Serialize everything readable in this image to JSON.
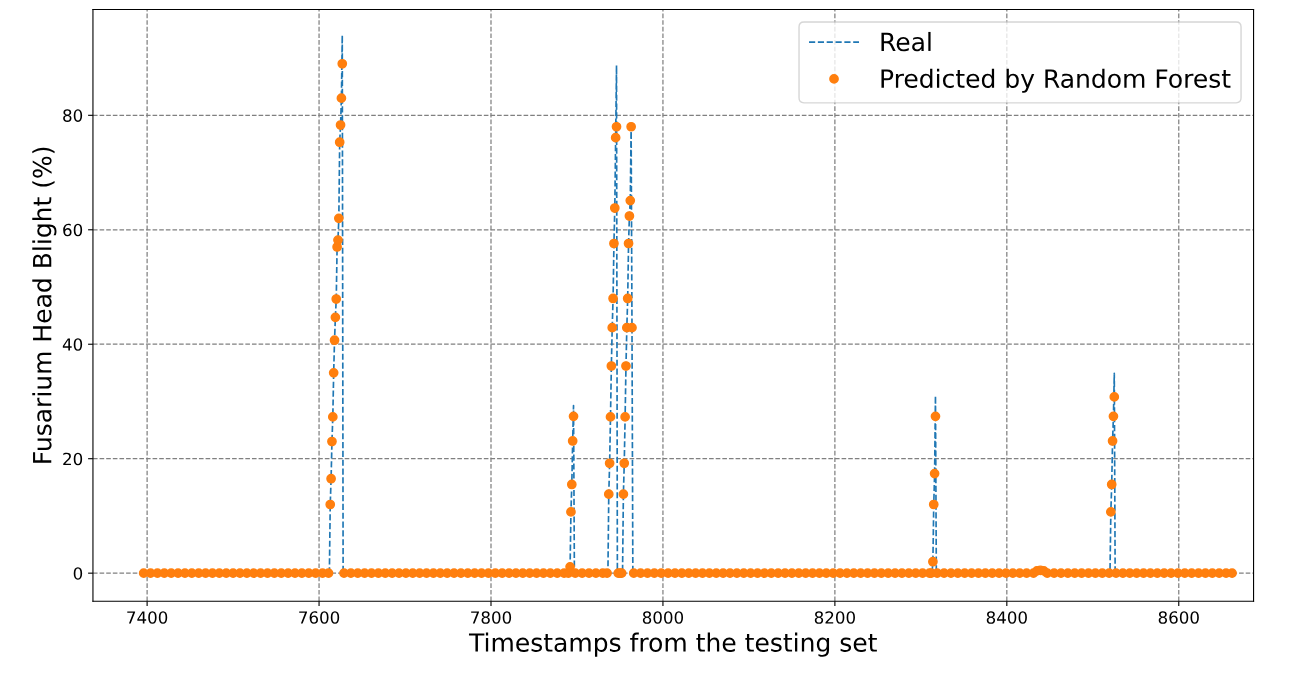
{
  "chart_data": {
    "type": "line",
    "xlabel": "Timestamps from the testing set",
    "ylabel": "Fusarium Head Blight (%)",
    "xlim": [
      7337,
      8687
    ],
    "xticks": [
      7400,
      7600,
      7800,
      8000,
      8200,
      8400,
      8600
    ],
    "ylim": [
      -4.9,
      98.5
    ],
    "yticks": [
      0,
      20,
      40,
      60,
      80
    ],
    "grid": true,
    "legend": "top right",
    "series": [
      {
        "name": "Real",
        "line_style": "dashed",
        "marker": "none",
        "color": "#1f77b4",
        "x": [
          7396,
          7612,
          7613,
          7614,
          7615,
          7616,
          7617,
          7618,
          7619,
          7620,
          7621,
          7622,
          7623,
          7624,
          7625,
          7626,
          7627,
          7628,
          7891,
          7892,
          7893,
          7894,
          7895,
          7896,
          7897,
          7936,
          7937,
          7938,
          7939,
          7940,
          7941,
          7942,
          7943,
          7944,
          7945,
          7946,
          7947,
          7953,
          7954,
          7955,
          7956,
          7957,
          7958,
          7959,
          7960,
          7961,
          7962,
          7963,
          7964,
          7965,
          8313,
          8314,
          8315,
          8316,
          8317,
          8318,
          8520,
          8521,
          8522,
          8523,
          8524,
          8525,
          8526,
          8662
        ],
        "values": [
          0,
          0,
          12,
          16.5,
          23,
          27.3,
          35,
          40.7,
          44.7,
          47.9,
          57,
          58.2,
          62,
          75.3,
          78.3,
          83,
          94,
          0,
          0,
          1.1,
          10.7,
          15.5,
          23.1,
          29.3,
          0,
          0,
          13.8,
          19.2,
          27.3,
          36.2,
          42.9,
          48,
          57.6,
          63.8,
          76.1,
          88.7,
          0,
          0,
          13.8,
          19.2,
          27.3,
          36.2,
          42.9,
          48,
          57.6,
          62.4,
          65.1,
          78,
          42.9,
          0,
          0,
          2,
          12,
          17.4,
          31,
          0,
          0,
          10.7,
          15.5,
          23.1,
          27.4,
          34.9,
          0,
          0
        ]
      },
      {
        "name": "Predicted by Random Forest",
        "type": "scatter",
        "marker": "circle",
        "color": "#ff7f0e",
        "x": [
          7396,
          7404,
          7412,
          7420,
          7428,
          7436,
          7444,
          7452,
          7460,
          7468,
          7476,
          7484,
          7492,
          7500,
          7508,
          7516,
          7524,
          7532,
          7540,
          7548,
          7556,
          7564,
          7572,
          7580,
          7588,
          7596,
          7604,
          7611,
          7613,
          7614,
          7615,
          7616,
          7617,
          7618,
          7619,
          7620,
          7621,
          7622,
          7623,
          7624,
          7625,
          7626,
          7627,
          7629,
          7637,
          7645,
          7653,
          7661,
          7669,
          7677,
          7685,
          7693,
          7701,
          7709,
          7717,
          7725,
          7733,
          7741,
          7749,
          7757,
          7765,
          7773,
          7781,
          7789,
          7797,
          7805,
          7813,
          7821,
          7829,
          7837,
          7845,
          7853,
          7861,
          7869,
          7877,
          7885,
          7890,
          7892,
          7893,
          7894,
          7895,
          7896,
          7898,
          7906,
          7914,
          7922,
          7930,
          7935,
          7937,
          7938,
          7939,
          7940,
          7941,
          7942,
          7943,
          7944,
          7945,
          7946,
          7948,
          7950,
          7952,
          7954,
          7955,
          7956,
          7957,
          7958,
          7959,
          7960,
          7961,
          7962,
          7963,
          7964,
          7966,
          7974,
          7982,
          7990,
          7998,
          8006,
          8014,
          8022,
          8030,
          8038,
          8046,
          8054,
          8062,
          8070,
          8078,
          8086,
          8094,
          8102,
          8110,
          8118,
          8126,
          8134,
          8142,
          8150,
          8158,
          8166,
          8174,
          8182,
          8190,
          8198,
          8206,
          8214,
          8222,
          8230,
          8238,
          8246,
          8254,
          8262,
          8270,
          8278,
          8286,
          8294,
          8302,
          8310,
          8312,
          8314,
          8315,
          8316,
          8317,
          8319,
          8327,
          8335,
          8343,
          8351,
          8359,
          8367,
          8375,
          8383,
          8391,
          8399,
          8407,
          8415,
          8423,
          8431,
          8435,
          8439,
          8443,
          8447,
          8455,
          8463,
          8471,
          8479,
          8487,
          8495,
          8503,
          8511,
          8519,
          8521,
          8522,
          8523,
          8524,
          8525,
          8527,
          8535,
          8543,
          8551,
          8559,
          8567,
          8575,
          8583,
          8591,
          8599,
          8607,
          8615,
          8623,
          8631,
          8639,
          8647,
          8655,
          8662
        ],
        "values": [
          0,
          0,
          0,
          0,
          0,
          0,
          0,
          0,
          0,
          0,
          0,
          0,
          0,
          0,
          0,
          0,
          0,
          0,
          0,
          0,
          0,
          0,
          0,
          0,
          0,
          0,
          0,
          0,
          12,
          16.5,
          23,
          27.3,
          35,
          40.7,
          44.7,
          47.9,
          57,
          58.2,
          62,
          75.3,
          78.3,
          83,
          89,
          0,
          0,
          0,
          0,
          0,
          0,
          0,
          0,
          0,
          0,
          0,
          0,
          0,
          0,
          0,
          0,
          0,
          0,
          0,
          0,
          0,
          0,
          0,
          0,
          0,
          0,
          0,
          0,
          0,
          0,
          0,
          0,
          0,
          0,
          1.1,
          10.7,
          15.5,
          23.1,
          27.4,
          0,
          0,
          0,
          0,
          0,
          0,
          13.8,
          19.2,
          27.3,
          36.2,
          42.9,
          48,
          57.6,
          63.8,
          76.1,
          78,
          0,
          0,
          0,
          13.8,
          19.2,
          27.3,
          36.2,
          42.9,
          48,
          57.6,
          62.4,
          65.1,
          78,
          42.9,
          0,
          0,
          0,
          0,
          0,
          0,
          0,
          0,
          0,
          0,
          0,
          0,
          0,
          0,
          0,
          0,
          0,
          0,
          0,
          0,
          0,
          0,
          0,
          0,
          0,
          0,
          0,
          0,
          0,
          0,
          0,
          0,
          0,
          0,
          0,
          0,
          0,
          0,
          0,
          0,
          0,
          0,
          0,
          0,
          0,
          2,
          12,
          17.4,
          27.4,
          0,
          0,
          0,
          0,
          0,
          0,
          0,
          0,
          0,
          0,
          0,
          0,
          0,
          0,
          0,
          0.4,
          0.5,
          0.4,
          0,
          0,
          0,
          0,
          0,
          0,
          0,
          0,
          0,
          0,
          10.7,
          15.5,
          23.1,
          27.4,
          30.8,
          0,
          0,
          0,
          0,
          0,
          0,
          0,
          0,
          0,
          0,
          0,
          0,
          0,
          0,
          0,
          0,
          0,
          0
        ]
      }
    ]
  }
}
